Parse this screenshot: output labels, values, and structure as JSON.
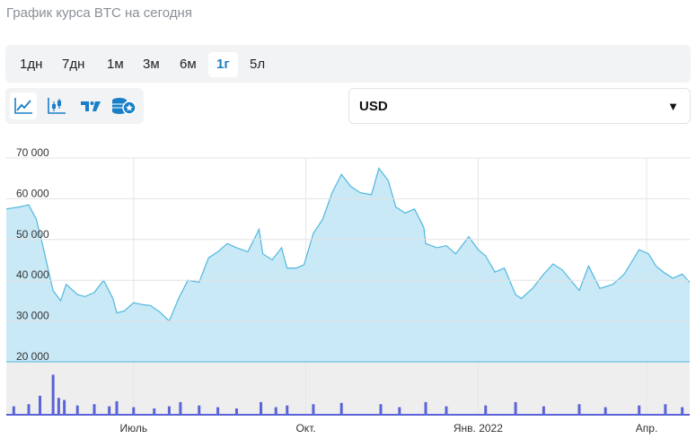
{
  "page": {
    "title": "График курса BTC на сегодня"
  },
  "ranges": [
    {
      "label": "1дн",
      "active": false
    },
    {
      "label": "7дн",
      "active": false
    },
    {
      "label": "1м",
      "active": false
    },
    {
      "label": "3м",
      "active": false
    },
    {
      "label": "6м",
      "active": false
    },
    {
      "label": "1г",
      "active": true
    },
    {
      "label": "5л",
      "active": false
    }
  ],
  "tools": [
    {
      "icon": "line-chart-icon",
      "active": true
    },
    {
      "icon": "candlestick-chart-icon",
      "active": false
    },
    {
      "icon": "tradingview-icon",
      "active": false
    },
    {
      "icon": "coins-icon",
      "active": false
    }
  ],
  "currency": {
    "selected": "USD"
  },
  "colors": {
    "accent": "#1a7fc7",
    "area_fill": "#c9e9f6",
    "area_line": "#4fb8de",
    "volume": "#5b63d6",
    "lower_bg": "#eeeeee"
  },
  "chart_data": {
    "type": "area",
    "ylim": [
      20000,
      70000
    ],
    "yticks": [
      {
        "value": 70000,
        "label": "70 000"
      },
      {
        "value": 60000,
        "label": "60 000"
      },
      {
        "value": 50000,
        "label": "50 000"
      },
      {
        "value": 40000,
        "label": "40 000"
      },
      {
        "value": 30000,
        "label": "30 000"
      },
      {
        "value": 20000,
        "label": "20 000"
      }
    ],
    "xlim": [
      "2021-04-24",
      "2022-04-24"
    ],
    "xticks": [
      {
        "date": "2021-07-01",
        "label": "Июль"
      },
      {
        "date": "2021-10-01",
        "label": "Окт."
      },
      {
        "date": "2022-01-01",
        "label": "Янв. 2022"
      },
      {
        "date": "2022-04-01",
        "label": "Апр."
      }
    ],
    "series": [
      {
        "values": [
          [
            "2021-04-24",
            57500
          ],
          [
            "2021-05-01",
            58000
          ],
          [
            "2021-05-06",
            58500
          ],
          [
            "2021-05-10",
            55000
          ],
          [
            "2021-05-13",
            49500
          ],
          [
            "2021-05-19",
            37500
          ],
          [
            "2021-05-23",
            35000
          ],
          [
            "2021-05-26",
            39000
          ],
          [
            "2021-06-01",
            36500
          ],
          [
            "2021-06-05",
            36000
          ],
          [
            "2021-06-10",
            37000
          ],
          [
            "2021-06-15",
            40000
          ],
          [
            "2021-06-20",
            35500
          ],
          [
            "2021-06-22",
            32000
          ],
          [
            "2021-06-26",
            32500
          ],
          [
            "2021-07-01",
            34500
          ],
          [
            "2021-07-06",
            34000
          ],
          [
            "2021-07-10",
            33800
          ],
          [
            "2021-07-15",
            32200
          ],
          [
            "2021-07-20",
            30000
          ],
          [
            "2021-07-25",
            35500
          ],
          [
            "2021-07-30",
            40000
          ],
          [
            "2021-08-05",
            39500
          ],
          [
            "2021-08-10",
            45500
          ],
          [
            "2021-08-15",
            47000
          ],
          [
            "2021-08-20",
            49000
          ],
          [
            "2021-08-25",
            48000
          ],
          [
            "2021-08-31",
            47000
          ],
          [
            "2021-09-06",
            52500
          ],
          [
            "2021-09-08",
            46500
          ],
          [
            "2021-09-13",
            45000
          ],
          [
            "2021-09-18",
            48000
          ],
          [
            "2021-09-21",
            43000
          ],
          [
            "2021-09-26",
            43000
          ],
          [
            "2021-09-30",
            43800
          ],
          [
            "2021-10-05",
            51500
          ],
          [
            "2021-10-10",
            55000
          ],
          [
            "2021-10-15",
            61500
          ],
          [
            "2021-10-20",
            66000
          ],
          [
            "2021-10-25",
            63000
          ],
          [
            "2021-10-30",
            61500
          ],
          [
            "2021-11-05",
            61000
          ],
          [
            "2021-11-09",
            67500
          ],
          [
            "2021-11-14",
            64500
          ],
          [
            "2021-11-18",
            58000
          ],
          [
            "2021-11-23",
            56500
          ],
          [
            "2021-11-28",
            57500
          ],
          [
            "2021-12-03",
            53000
          ],
          [
            "2021-12-04",
            49000
          ],
          [
            "2021-12-10",
            48000
          ],
          [
            "2021-12-15",
            48500
          ],
          [
            "2021-12-20",
            46500
          ],
          [
            "2021-12-27",
            50700
          ],
          [
            "2022-01-01",
            47500
          ],
          [
            "2022-01-05",
            46000
          ],
          [
            "2022-01-10",
            42000
          ],
          [
            "2022-01-15",
            43000
          ],
          [
            "2022-01-21",
            36500
          ],
          [
            "2022-01-24",
            35500
          ],
          [
            "2022-01-30",
            38000
          ],
          [
            "2022-02-05",
            41500
          ],
          [
            "2022-02-10",
            44000
          ],
          [
            "2022-02-15",
            42500
          ],
          [
            "2022-02-24",
            37500
          ],
          [
            "2022-03-01",
            43500
          ],
          [
            "2022-03-07",
            38000
          ],
          [
            "2022-03-14",
            39000
          ],
          [
            "2022-03-20",
            41500
          ],
          [
            "2022-03-28",
            47500
          ],
          [
            "2022-04-02",
            46500
          ],
          [
            "2022-04-06",
            43500
          ],
          [
            "2022-04-10",
            42000
          ],
          [
            "2022-04-15",
            40500
          ],
          [
            "2022-04-20",
            41500
          ],
          [
            "2022-04-24",
            39500
          ]
        ]
      }
    ],
    "volume": [
      [
        "2021-04-28",
        0.2
      ],
      [
        "2021-05-06",
        0.25
      ],
      [
        "2021-05-12",
        0.45
      ],
      [
        "2021-05-19",
        0.95
      ],
      [
        "2021-05-22",
        0.4
      ],
      [
        "2021-05-25",
        0.35
      ],
      [
        "2021-06-01",
        0.22
      ],
      [
        "2021-06-10",
        0.25
      ],
      [
        "2021-06-18",
        0.2
      ],
      [
        "2021-06-22",
        0.32
      ],
      [
        "2021-07-01",
        0.18
      ],
      [
        "2021-07-12",
        0.15
      ],
      [
        "2021-07-20",
        0.2
      ],
      [
        "2021-07-26",
        0.3
      ],
      [
        "2021-08-05",
        0.22
      ],
      [
        "2021-08-15",
        0.18
      ],
      [
        "2021-08-25",
        0.15
      ],
      [
        "2021-09-07",
        0.3
      ],
      [
        "2021-09-15",
        0.18
      ],
      [
        "2021-09-21",
        0.22
      ],
      [
        "2021-10-05",
        0.25
      ],
      [
        "2021-10-20",
        0.28
      ],
      [
        "2021-11-10",
        0.25
      ],
      [
        "2021-11-20",
        0.18
      ],
      [
        "2021-12-04",
        0.3
      ],
      [
        "2021-12-15",
        0.2
      ],
      [
        "2022-01-05",
        0.22
      ],
      [
        "2022-01-21",
        0.3
      ],
      [
        "2022-02-05",
        0.2
      ],
      [
        "2022-02-24",
        0.25
      ],
      [
        "2022-03-10",
        0.18
      ],
      [
        "2022-03-28",
        0.22
      ],
      [
        "2022-04-11",
        0.25
      ],
      [
        "2022-04-20",
        0.18
      ]
    ]
  }
}
